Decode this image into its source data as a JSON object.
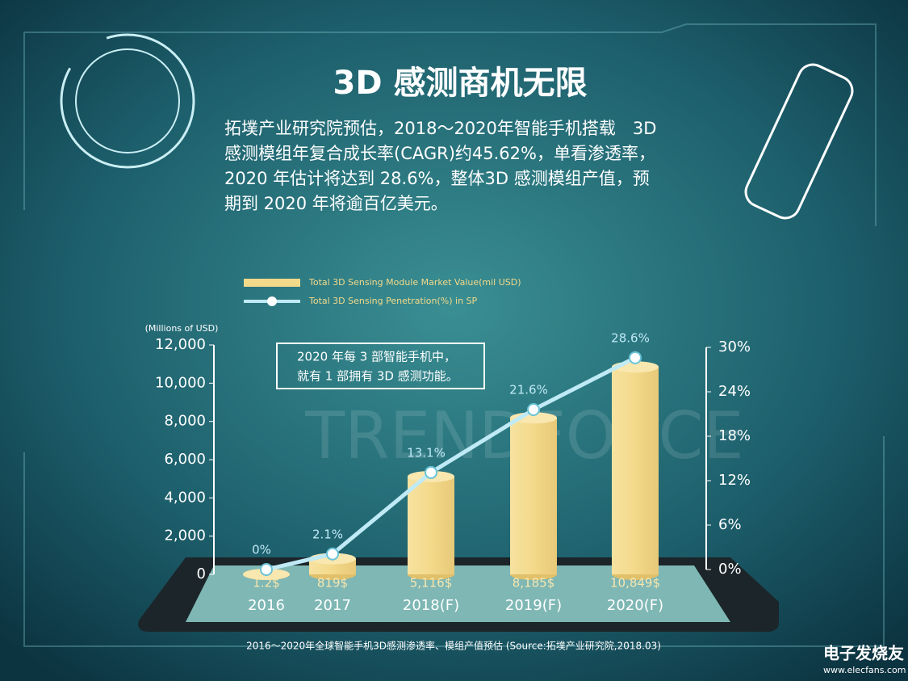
{
  "chart_data": {
    "type": "bar",
    "title": "3D 感测商机无限",
    "description": [
      "拓墣产业研究院预估，2018～2020年智能手机搭载　3D",
      "感测模组年复合成长率(CAGR)约45.62%，单看渗透率，",
      "2020 年估计将达到 28.6%，整体3D 感测模组产值，预",
      "期到 2020 年将逾百亿美元。"
    ],
    "y_label": "(Millions of USD)",
    "categories": [
      "2016",
      "2017",
      "2018(F)",
      "2019(F)",
      "2020(F)"
    ],
    "series": [
      {
        "name": "Total 3D Sensing Module Market Value(mil USD)",
        "type": "bar",
        "color": "#f3d98a",
        "values": [
          1.2,
          819,
          5116,
          8185,
          10849
        ],
        "value_labels": [
          "1.2$",
          "819$",
          "5,116$",
          "8,185$",
          "10,849$"
        ]
      },
      {
        "name": "Total 3D Sensing Penetration(%) in SP",
        "type": "line",
        "axis": "y2",
        "color": "#bfeaf6",
        "values": [
          0,
          2.1,
          13.1,
          21.6,
          28.6
        ],
        "value_labels": [
          "0%",
          "2.1%",
          "13.1%",
          "21.6%",
          "28.6%"
        ]
      }
    ],
    "ylim": [
      0,
      12000
    ],
    "yticks": [
      0,
      {
        "value": 2000,
        "label": "2,000"
      },
      {
        "value": 4000,
        "label": "4,000"
      },
      {
        "value": 6000,
        "label": "6,000"
      },
      {
        "value": 8000,
        "label": "8,000"
      },
      {
        "value": 10000,
        "label": "10,000"
      },
      {
        "value": 12000,
        "label": "12,000"
      }
    ],
    "y2lim": [
      0,
      30
    ],
    "y2ticks": [
      {
        "value": 0,
        "label": "0%"
      },
      {
        "value": 6,
        "label": "6%"
      },
      {
        "value": 12,
        "label": "12%"
      },
      {
        "value": 18,
        "label": "18%"
      },
      {
        "value": 24,
        "label": "24%"
      },
      {
        "value": 30,
        "label": "30%"
      }
    ],
    "annotation": [
      "2020 年每 3 部智能手机中，",
      "就有 1 部拥有 3D 感测功能。"
    ],
    "source": "2016～2020年全球智能手机3D感测渗透率、模组产值预估 (Source:拓墣产业研究院,2018.03)",
    "watermark": "TRENDFORCE"
  },
  "logo": {
    "name": "电子发烧友",
    "url": "www.elecfans.com"
  }
}
